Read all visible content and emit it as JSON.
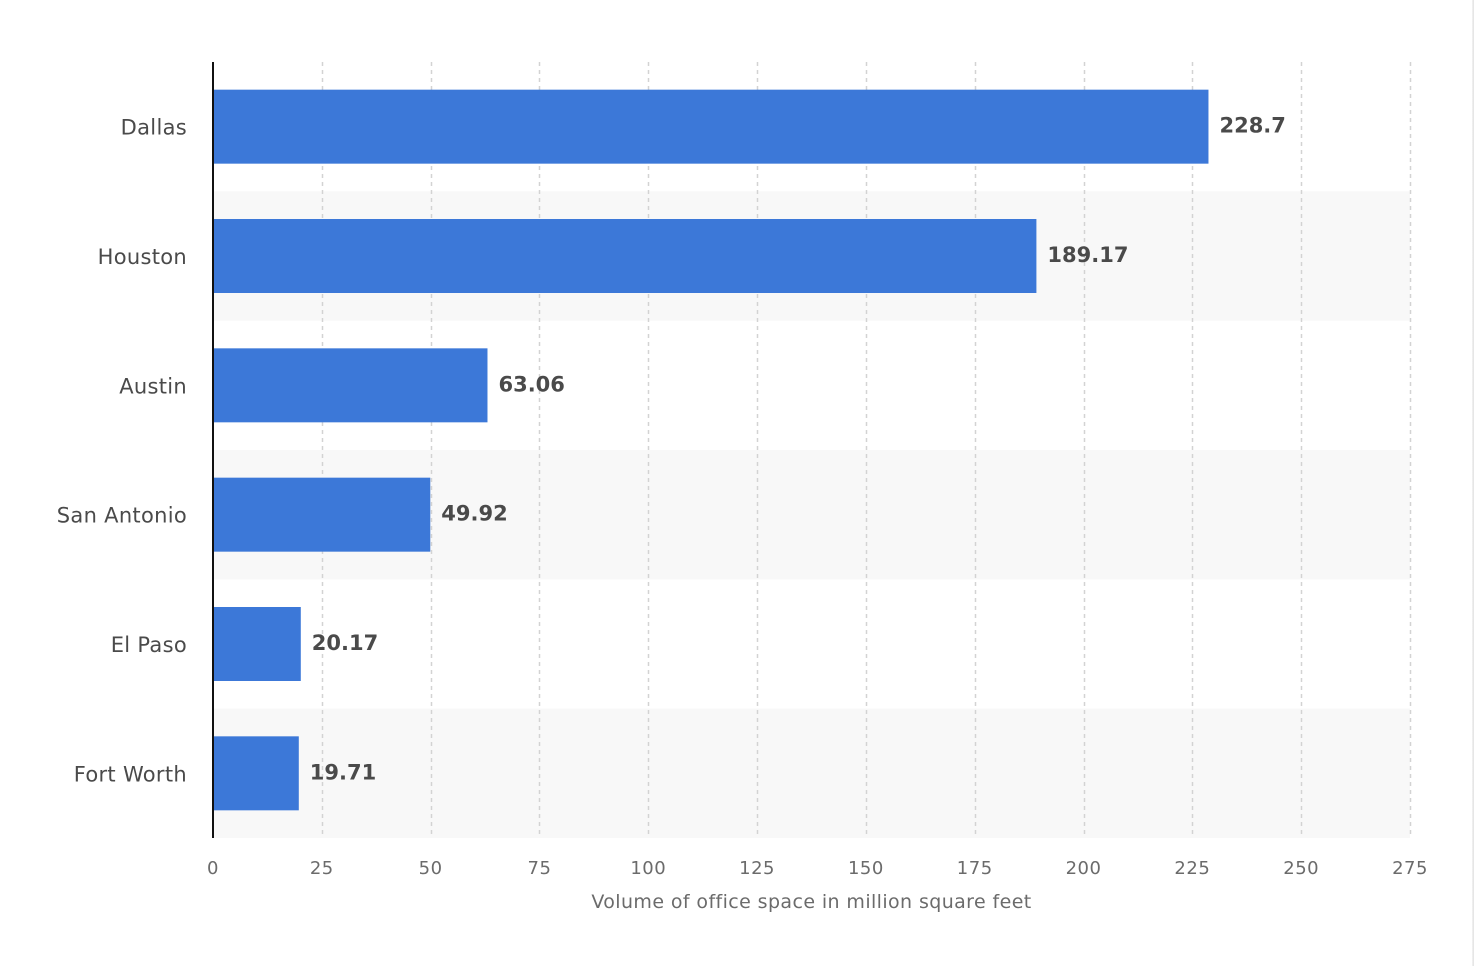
{
  "chart_data": {
    "type": "bar",
    "orientation": "horizontal",
    "title": "",
    "categories": [
      "Dallas",
      "Houston",
      "Austin",
      "San Antonio",
      "El Paso",
      "Fort Worth"
    ],
    "values": [
      228.7,
      189.17,
      63.06,
      49.92,
      20.17,
      19.71
    ],
    "value_labels": [
      "228.7",
      "189.17",
      "63.06",
      "49.92",
      "20.17",
      "19.71"
    ],
    "xlabel": "Volume of office space in million square feet",
    "ylabel": "",
    "xlim": [
      0,
      275
    ],
    "xticks": [
      0,
      25,
      50,
      75,
      100,
      125,
      150,
      175,
      200,
      225,
      250,
      275
    ],
    "xtick_labels": [
      "0",
      "25",
      "50",
      "75",
      "100",
      "125",
      "150",
      "175",
      "200",
      "225",
      "250",
      "275"
    ],
    "grid": "vertical-dashed",
    "legend": "none"
  },
  "colors": {
    "bar": "#3c78d8",
    "band": "#f8f8f8",
    "grid": "#d3d3d3",
    "axis": "#111111",
    "text": "#4a4a4a",
    "muted": "#6b6b6b"
  }
}
